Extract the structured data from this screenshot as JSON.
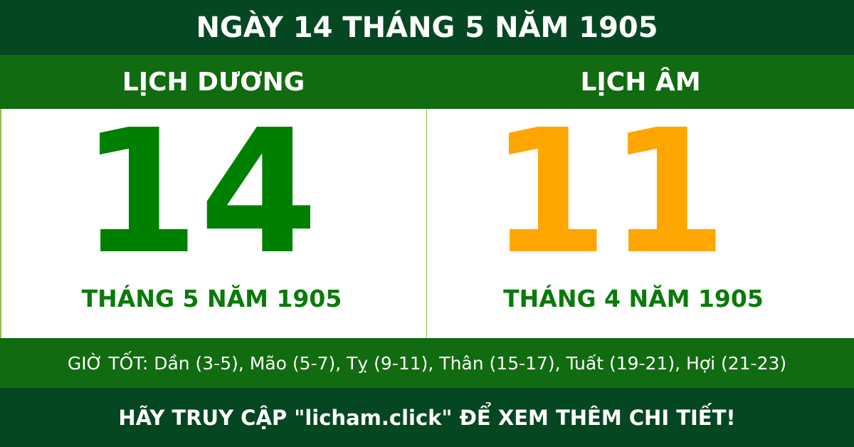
{
  "title": "NGÀY 14 THÁNG 5 NĂM 1905",
  "solar": {
    "label": "LỊCH DƯƠNG",
    "day": "14",
    "month_year": "THÁNG 5 NĂM 1905"
  },
  "lunar": {
    "label": "LỊCH ÂM",
    "day": "11",
    "month_year": "THÁNG 4 NĂM 1905"
  },
  "good_hours": "GIỜ TỐT: Dần (3-5), Mão (5-7), Tỵ (9-11), Thân (15-17), Tuất (19-21), Hợi (21-23)",
  "footer": "HÃY TRUY CẬP \"licham.click\" ĐỂ XEM THÊM CHI TIẾT!",
  "colors": {
    "dark_green": "#054721",
    "green": "#116b10",
    "solar_day": "#008000",
    "lunar_day": "#ffa500"
  }
}
